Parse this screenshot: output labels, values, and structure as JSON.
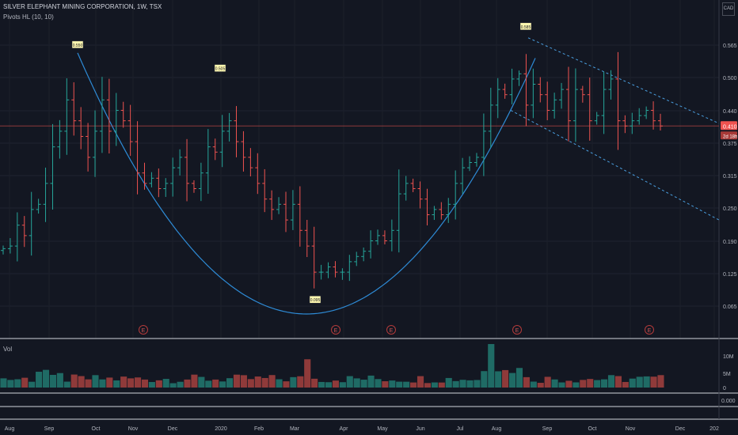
{
  "header": {
    "title": "SILVER ELEPHANT MINING CORPORATION, 1W, TSX",
    "indicator": "Pivots HL (10, 10)",
    "currency": "CAD"
  },
  "price_axis": {
    "labels": [
      "0.565",
      "0.500",
      "0.440",
      "0.375",
      "0.315",
      "0.250",
      "0.190",
      "0.125",
      "0.065"
    ],
    "last_price": "0.410",
    "countdown": "2d 18h"
  },
  "volume_pane": {
    "label": "Vol",
    "axis_labels": [
      "10M",
      "5M",
      "0"
    ]
  },
  "indicator_pane": {
    "axis_label": "0.000"
  },
  "time_axis": {
    "labels": [
      "Aug",
      "Sep",
      "Oct",
      "Nov",
      "Dec",
      "2020",
      "Feb",
      "Mar",
      "Apr",
      "May",
      "Jun",
      "Jul",
      "Aug",
      "Sep",
      "Oct",
      "Nov",
      "Dec",
      "202"
    ]
  },
  "pivots": [
    "0.550",
    "0.505",
    "0.095",
    "0.585"
  ],
  "earnings_marker": "E",
  "colors": {
    "background": "#131722",
    "up": "#26a69a",
    "down": "#ef5350",
    "volume_up": "#1f6b65",
    "volume_down": "#8f3a3a",
    "cup_curve": "#2e8bd6",
    "channel": "#4a9fe0",
    "price_line": "#ef5350"
  },
  "chart_data": {
    "type": "ohlc",
    "title": "SILVER ELEPHANT MINING CORPORATION, 1W, TSX",
    "x_labels": [
      "Aug",
      "Sep",
      "Oct",
      "Nov",
      "Dec",
      "2020",
      "Feb",
      "Mar",
      "Apr",
      "May",
      "Jun",
      "Jul",
      "Aug",
      "Sep",
      "Oct",
      "Nov",
      "Dec",
      "202"
    ],
    "ylim": [
      0.03,
      0.6
    ],
    "closes": [
      0.175,
      0.18,
      0.22,
      0.2,
      0.25,
      0.26,
      0.3,
      0.37,
      0.4,
      0.46,
      0.42,
      0.39,
      0.35,
      0.4,
      0.46,
      0.4,
      0.44,
      0.42,
      0.38,
      0.32,
      0.3,
      0.31,
      0.29,
      0.3,
      0.33,
      0.35,
      0.3,
      0.29,
      0.32,
      0.37,
      0.36,
      0.4,
      0.42,
      0.38,
      0.35,
      0.33,
      0.3,
      0.27,
      0.25,
      0.26,
      0.23,
      0.26,
      0.21,
      0.18,
      0.13,
      0.13,
      0.14,
      0.13,
      0.13,
      0.15,
      0.16,
      0.17,
      0.19,
      0.2,
      0.19,
      0.21,
      0.28,
      0.3,
      0.29,
      0.27,
      0.24,
      0.25,
      0.24,
      0.26,
      0.3,
      0.33,
      0.34,
      0.35,
      0.4,
      0.45,
      0.48,
      0.47,
      0.5,
      0.51,
      0.45,
      0.49,
      0.47,
      0.44,
      0.46,
      0.48,
      0.42,
      0.48,
      0.47,
      0.42,
      0.43,
      0.48,
      0.5,
      0.42,
      0.41,
      0.42,
      0.43,
      0.44,
      0.42,
      0.41
    ],
    "volume_max_label": "10M",
    "pivot_labels": [
      "0.550",
      "0.505",
      "0.095",
      "0.585"
    ],
    "price_scale_labels": [
      "0.565",
      "0.500",
      "0.440",
      "0.375",
      "0.315",
      "0.250",
      "0.190",
      "0.125",
      "0.065"
    ],
    "last_price": "0.410"
  }
}
